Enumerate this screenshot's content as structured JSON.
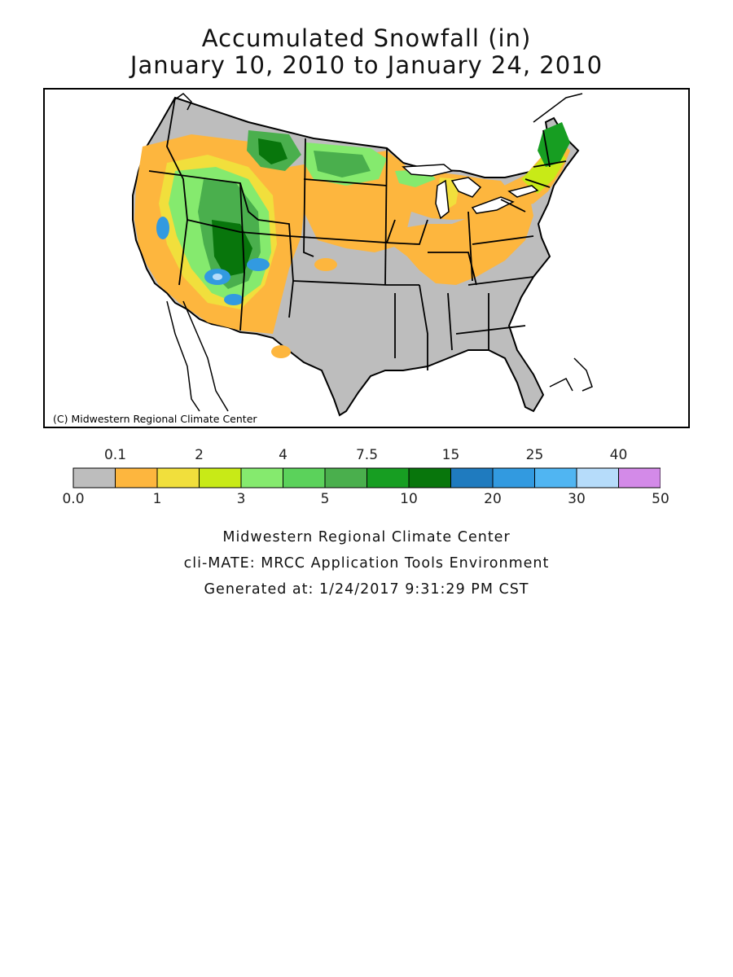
{
  "title": {
    "line1": "Accumulated Snowfall (in)",
    "line2": "January 10, 2010 to January 24, 2010"
  },
  "map": {
    "copyright": "(C) Midwestern Regional Climate Center",
    "background_color": "#bdbdbd",
    "border_color": "#000000"
  },
  "legend": {
    "top_labels": [
      "0.1",
      "2",
      "4",
      "7.5",
      "15",
      "25",
      "40"
    ],
    "bottom_labels": [
      "0.0",
      "1",
      "3",
      "5",
      "10",
      "20",
      "30",
      "50"
    ],
    "bins": [
      {
        "range": "0.0-0.1",
        "color": "#bdbdbd"
      },
      {
        "range": "0.1-1",
        "color": "#fdb63e"
      },
      {
        "range": "1-2",
        "color": "#f1df3c"
      },
      {
        "range": "2-3",
        "color": "#c8ea17"
      },
      {
        "range": "3-4",
        "color": "#85ea6e"
      },
      {
        "range": "4-5",
        "color": "#5bd25b"
      },
      {
        "range": "5-7.5",
        "color": "#4aaf4d"
      },
      {
        "range": "7.5-10",
        "color": "#179e22"
      },
      {
        "range": "10-15",
        "color": "#08760c"
      },
      {
        "range": "15-20",
        "color": "#1f7bbf"
      },
      {
        "range": "20-25",
        "color": "#329ae0"
      },
      {
        "range": "25-30",
        "color": "#50b5f2"
      },
      {
        "range": "30-40",
        "color": "#b6dcfa"
      },
      {
        "range": "40-50",
        "color": "#d38ae8"
      }
    ]
  },
  "footer": {
    "line1": "Midwestern Regional Climate Center",
    "line2": "cli-MATE: MRCC Application Tools Environment",
    "line3": "Generated at: 1/24/2017 9:31:29 PM CST"
  }
}
